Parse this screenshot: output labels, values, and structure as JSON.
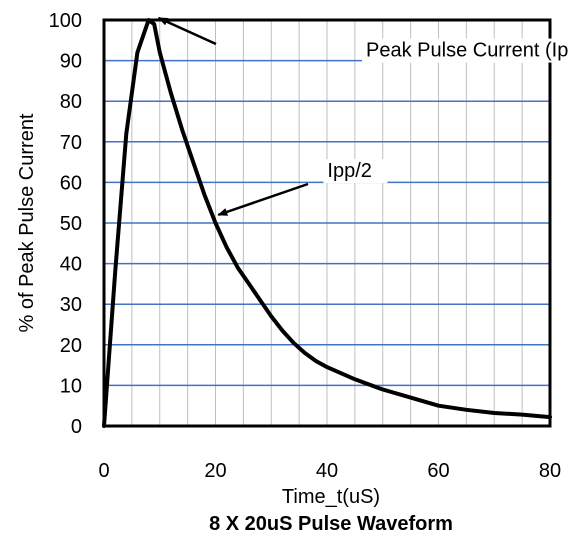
{
  "chart_data": {
    "type": "line",
    "title": "8 X 20uS Pulse Waveform",
    "xlabel": "Time_t(uS)",
    "ylabel": "% of Peak Pulse Current",
    "xlim": [
      0,
      80
    ],
    "ylim": [
      0,
      100
    ],
    "x_ticks": [
      "0",
      "20",
      "40",
      "60",
      "80"
    ],
    "y_ticks": [
      "0",
      "10",
      "20",
      "30",
      "40",
      "50",
      "60",
      "70",
      "80",
      "90",
      "100"
    ],
    "x_minor_step": 5,
    "grid": true,
    "colors": {
      "series": "#000000",
      "grid_horizontal": "#4472c4",
      "grid_vertical": "#bfbfbf",
      "frame": "#000000"
    },
    "series": [
      {
        "x": [
          0,
          2,
          4,
          6,
          8,
          9,
          10,
          12,
          14,
          16,
          18,
          20,
          22,
          24,
          26,
          28,
          30,
          32,
          34,
          36,
          38,
          40,
          45,
          50,
          55,
          60,
          65,
          70,
          75,
          80
        ],
        "y": [
          0,
          38,
          72,
          92,
          100,
          99,
          92,
          82,
          73,
          65,
          57,
          50,
          44,
          39,
          35,
          31,
          27,
          23.5,
          20.5,
          18,
          16,
          14.5,
          11.5,
          9,
          7,
          5,
          4,
          3.2,
          2.8,
          2.2
        ]
      }
    ],
    "annotations": [
      {
        "text": "Peak Pulse Current (Ipp)",
        "label_at": [
          47,
          91
        ],
        "arrow_to": [
          9.8,
          100.5
        ]
      },
      {
        "text": "Ipp/2",
        "label_at": [
          39,
          63
        ],
        "arrow_to": [
          20.5,
          52
        ]
      }
    ]
  }
}
